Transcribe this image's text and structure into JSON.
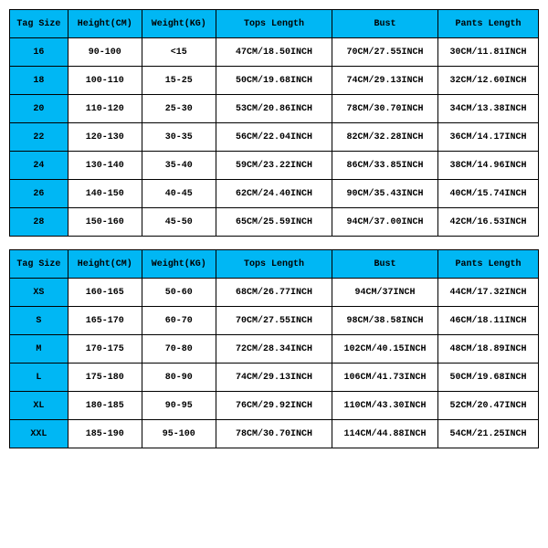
{
  "columns": [
    "Tag Size",
    "Height(CM)",
    "Weight(KG)",
    "Tops Length",
    "Bust",
    "Pants Length"
  ],
  "header_bg": "#00b7f4",
  "tag_bg": "#00b7f4",
  "cell_bg": "#ffffff",
  "border_color": "#000000",
  "font_family": "Courier New",
  "font_size_pt": 8,
  "col_widths_pct": [
    11,
    14,
    14,
    22,
    20,
    19
  ],
  "table1": {
    "rows": [
      {
        "tag": "16",
        "height": "90-100",
        "weight": "<15",
        "tops": "47CM/18.50INCH",
        "bust": "70CM/27.55INCH",
        "pants": "30CM/11.81INCH"
      },
      {
        "tag": "18",
        "height": "100-110",
        "weight": "15-25",
        "tops": "50CM/19.68INCH",
        "bust": "74CM/29.13INCH",
        "pants": "32CM/12.60INCH"
      },
      {
        "tag": "20",
        "height": "110-120",
        "weight": "25-30",
        "tops": "53CM/20.86INCH",
        "bust": "78CM/30.70INCH",
        "pants": "34CM/13.38INCH"
      },
      {
        "tag": "22",
        "height": "120-130",
        "weight": "30-35",
        "tops": "56CM/22.04INCH",
        "bust": "82CM/32.28INCH",
        "pants": "36CM/14.17INCH"
      },
      {
        "tag": "24",
        "height": "130-140",
        "weight": "35-40",
        "tops": "59CM/23.22INCH",
        "bust": "86CM/33.85INCH",
        "pants": "38CM/14.96INCH"
      },
      {
        "tag": "26",
        "height": "140-150",
        "weight": "40-45",
        "tops": "62CM/24.40INCH",
        "bust": "90CM/35.43INCH",
        "pants": "40CM/15.74INCH"
      },
      {
        "tag": "28",
        "height": "150-160",
        "weight": "45-50",
        "tops": "65CM/25.59INCH",
        "bust": "94CM/37.00INCH",
        "pants": "42CM/16.53INCH"
      }
    ]
  },
  "table2": {
    "rows": [
      {
        "tag": "XS",
        "height": "160-165",
        "weight": "50-60",
        "tops": "68CM/26.77INCH",
        "bust": "94CM/37INCH",
        "pants": "44CM/17.32INCH"
      },
      {
        "tag": "S",
        "height": "165-170",
        "weight": "60-70",
        "tops": "70CM/27.55INCH",
        "bust": "98CM/38.58INCH",
        "pants": "46CM/18.11INCH"
      },
      {
        "tag": "M",
        "height": "170-175",
        "weight": "70-80",
        "tops": "72CM/28.34INCH",
        "bust": "102CM/40.15INCH",
        "pants": "48CM/18.89INCH"
      },
      {
        "tag": "L",
        "height": "175-180",
        "weight": "80-90",
        "tops": "74CM/29.13INCH",
        "bust": "106CM/41.73INCH",
        "pants": "50CM/19.68INCH"
      },
      {
        "tag": "XL",
        "height": "180-185",
        "weight": "90-95",
        "tops": "76CM/29.92INCH",
        "bust": "110CM/43.30INCH",
        "pants": "52CM/20.47INCH"
      },
      {
        "tag": "XXL",
        "height": "185-190",
        "weight": "95-100",
        "tops": "78CM/30.70INCH",
        "bust": "114CM/44.88INCH",
        "pants": "54CM/21.25INCH"
      }
    ]
  }
}
